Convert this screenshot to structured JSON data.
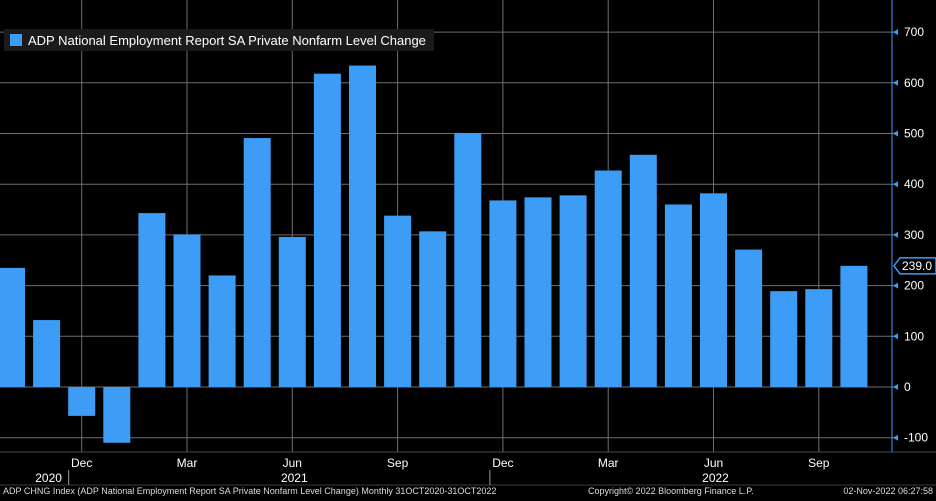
{
  "chart_data": {
    "type": "bar",
    "title": "ADP National Employment Report SA Private Nonfarm Level Change",
    "series": [
      {
        "name": "ADP National Employment Report SA Private Nonfarm Level Change",
        "color": "#3d9df6",
        "values": [
          235,
          132,
          -57,
          -110,
          343,
          301,
          220,
          491,
          296,
          618,
          634,
          338,
          307,
          501,
          368,
          374,
          378,
          427,
          458,
          360,
          382,
          271,
          189,
          193,
          239
        ]
      }
    ],
    "categories": [
      "Oct 2020",
      "Nov 2020",
      "Dec 2020",
      "Jan 2021",
      "Feb 2021",
      "Mar 2021",
      "Apr 2021",
      "May 2021",
      "Jun 2021",
      "Jul 2021",
      "Aug 2021",
      "Sep 2021",
      "Oct 2021",
      "Nov 2021",
      "Dec 2021",
      "Jan 2022",
      "Feb 2022",
      "Mar 2022",
      "Apr 2022",
      "May 2022",
      "Jun 2022",
      "Jul 2022",
      "Aug 2022",
      "Sep 2022",
      "Oct 2022"
    ],
    "ylim": [
      -120,
      780
    ],
    "yticks": [
      -100,
      0,
      100,
      200,
      300,
      400,
      500,
      600,
      700
    ],
    "ytick_labels": [
      "-100",
      "0",
      "100",
      "200",
      "300",
      "400",
      "500",
      "600",
      "700"
    ],
    "xtick_labels": [
      {
        "label": "Dec",
        "index": 2
      },
      {
        "label": "Mar",
        "index": 5
      },
      {
        "label": "Jun",
        "index": 8
      },
      {
        "label": "Sep",
        "index": 11
      },
      {
        "label": "Dec",
        "index": 14
      },
      {
        "label": "Mar",
        "index": 17
      },
      {
        "label": "Jun",
        "index": 20
      },
      {
        "label": "Sep",
        "index": 23
      }
    ],
    "year_labels": [
      {
        "label": "2020",
        "index": 1
      },
      {
        "label": "2021",
        "index": 8
      },
      {
        "label": "2022",
        "index": 20
      }
    ],
    "last_value_label": "239.0",
    "grid": true,
    "legend": "top-left"
  },
  "footer": {
    "left": "ADP CHNG Index (ADP National Employment Report SA Private Nonfarm Level Change)  Monthly 31OCT2020-31OCT2022",
    "center": "Copyright© 2022 Bloomberg Finance L.P.",
    "right": "02-Nov-2022 06:27:58"
  },
  "colors": {
    "bar": "#3d9df6",
    "background": "#000000",
    "grid": "#6e6e6e",
    "axis": "#3d9df6",
    "badge": "#3d9df6"
  }
}
